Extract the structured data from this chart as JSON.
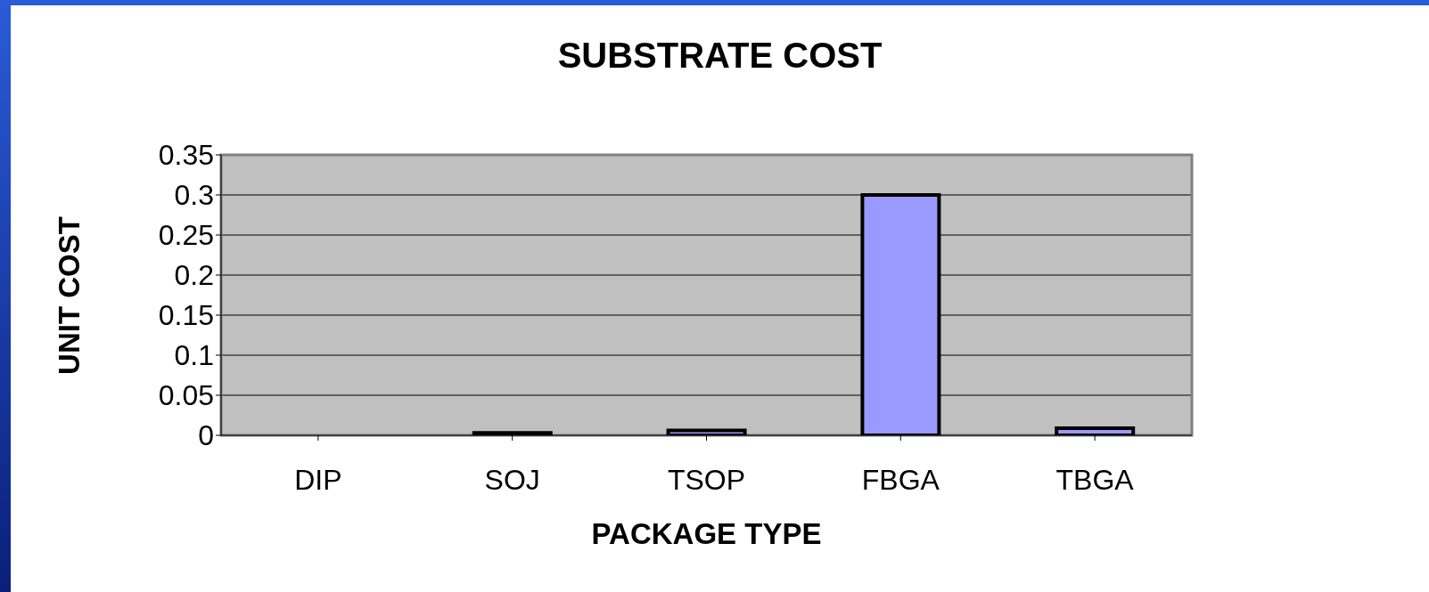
{
  "chart_data": {
    "type": "bar",
    "title": "SUBSTRATE COST",
    "xlabel": "PACKAGE TYPE",
    "ylabel": "UNIT COST",
    "categories": [
      "DIP",
      "SOJ",
      "TSOP",
      "FBGA",
      "TBGA"
    ],
    "values": [
      0,
      0.003,
      0.006,
      0.3,
      0.009
    ],
    "color": "#9999ff",
    "ylim": [
      0,
      0.35
    ],
    "yticks": [
      0,
      0.05,
      0.1,
      0.15,
      0.2,
      0.25,
      0.3,
      0.35
    ],
    "grid": "y"
  }
}
